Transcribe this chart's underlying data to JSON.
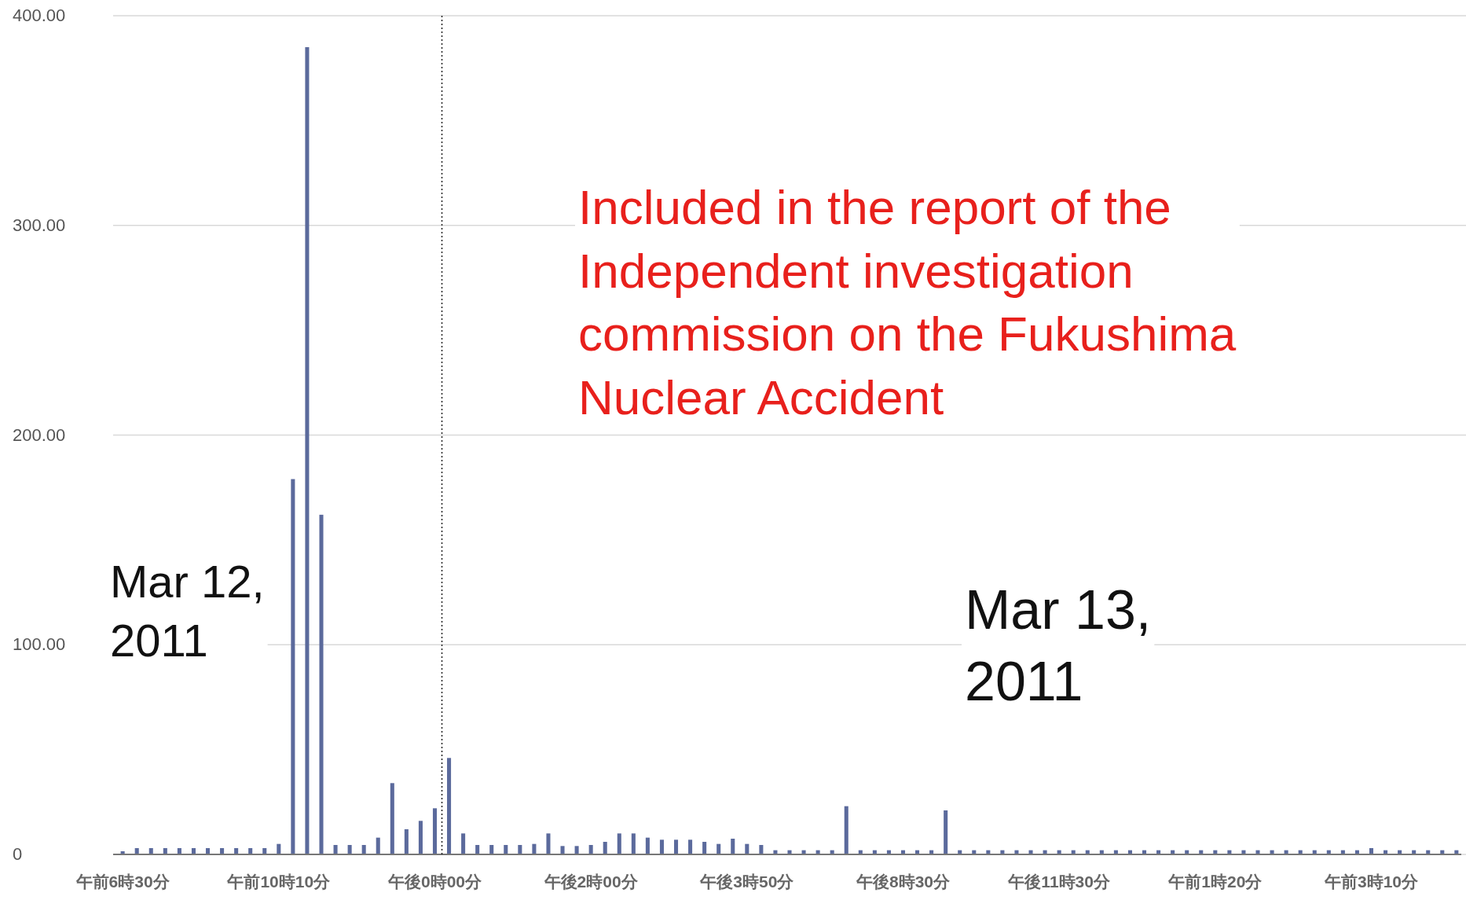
{
  "chart_data": {
    "type": "bar",
    "color": "#5b6a9c",
    "categories": [
      "午前6時30分",
      null,
      null,
      null,
      null,
      null,
      null,
      null,
      null,
      null,
      null,
      "午前10時10分",
      null,
      null,
      null,
      null,
      null,
      null,
      null,
      null,
      null,
      null,
      "午後0時00分",
      null,
      null,
      null,
      null,
      null,
      null,
      null,
      null,
      null,
      null,
      "午後2時00分",
      null,
      null,
      null,
      null,
      null,
      null,
      null,
      null,
      null,
      null,
      "午後3時50分",
      null,
      null,
      null,
      null,
      null,
      null,
      null,
      null,
      null,
      null,
      "午後8時30分",
      null,
      null,
      null,
      null,
      null,
      null,
      null,
      null,
      null,
      null,
      "午後11時30分",
      null,
      null,
      null,
      null,
      null,
      null,
      null,
      null,
      null,
      null,
      "午前1時20分",
      null,
      null,
      null,
      null,
      null,
      null,
      null,
      null,
      null,
      null,
      "午前3時10分",
      null,
      null,
      null,
      null,
      null,
      null
    ],
    "values": [
      1.5,
      3,
      3,
      3,
      3,
      3,
      3,
      3,
      3,
      3,
      3,
      5,
      179,
      385,
      162,
      4.5,
      4.5,
      4.5,
      8,
      34,
      12,
      16,
      22,
      46,
      10,
      4.5,
      4.5,
      4.5,
      4.5,
      5,
      10,
      4,
      4,
      4.5,
      6,
      10,
      10,
      8,
      7,
      7,
      7,
      6,
      5,
      7.5,
      5,
      4.5,
      2,
      2,
      2,
      2,
      2,
      23,
      2,
      2,
      2,
      2,
      2,
      2,
      21,
      2,
      2,
      2,
      2,
      2,
      2,
      2,
      2,
      2,
      2,
      2,
      2,
      2,
      2,
      2,
      2,
      2,
      2,
      2,
      2,
      2,
      2,
      2,
      2,
      2,
      2,
      2,
      2,
      2,
      3,
      2,
      2,
      2,
      2,
      2,
      2
    ],
    "ylim": [
      0,
      400
    ],
    "yticks": [
      {
        "value": 0,
        "label": "0"
      },
      {
        "value": 100,
        "label": "100.00"
      },
      {
        "value": 200,
        "label": "200.00"
      },
      {
        "value": 300,
        "label": "300.00"
      },
      {
        "value": 400,
        "label": "400.00"
      }
    ],
    "grid": "y",
    "annotations": [
      "Mar 12, 2011",
      "Mar 13, 2011",
      "Included in the report of the Independent investigation commission on the Fukushima Nuclear Accident"
    ]
  }
}
